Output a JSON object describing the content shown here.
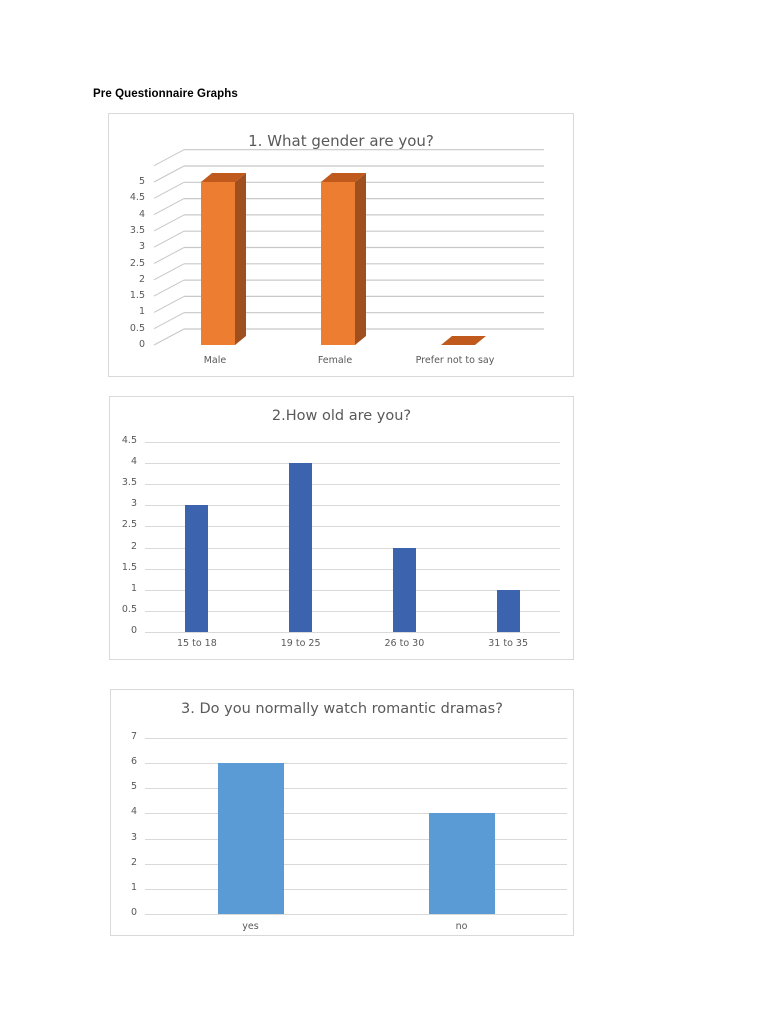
{
  "page": {
    "heading": "Pre Questionnaire Graphs"
  },
  "colors": {
    "orange_front": "#ED7D31",
    "orange_side": "#A0501E",
    "orange_top": "#C05A1C",
    "dark_blue": "#3C64AE",
    "light_blue": "#5B9BD5",
    "gridline": "#D9D9D9",
    "text": "#595959"
  },
  "chart_data": [
    {
      "type": "bar",
      "style": "3d-column",
      "title": "1. What gender are you?",
      "categories": [
        "Male",
        "Female",
        "Prefer not to say"
      ],
      "values": [
        5,
        5,
        0
      ],
      "xlabel": "",
      "ylabel": "",
      "ylim": [
        0,
        5
      ],
      "yticks": [
        "0",
        "0.5",
        "1",
        "1.5",
        "2",
        "2.5",
        "3",
        "3.5",
        "4",
        "4.5",
        "5"
      ],
      "grid": true,
      "legend": null,
      "color": "#ED7D31"
    },
    {
      "type": "bar",
      "title": "2.How old are you?",
      "categories": [
        "15 to 18",
        "19 to 25",
        "26 to 30",
        "31 to 35"
      ],
      "values": [
        3,
        4,
        2,
        1
      ],
      "xlabel": "",
      "ylabel": "",
      "ylim": [
        0,
        4.5
      ],
      "yticks": [
        "0",
        "0.5",
        "1",
        "1.5",
        "2",
        "2.5",
        "3",
        "3.5",
        "4",
        "4.5"
      ],
      "grid": true,
      "legend": null,
      "color": "#3C64AE"
    },
    {
      "type": "bar",
      "title": "3. Do you normally watch romantic dramas?",
      "categories": [
        "yes",
        "no"
      ],
      "values": [
        6,
        4
      ],
      "xlabel": "",
      "ylabel": "",
      "ylim": [
        0,
        7
      ],
      "yticks": [
        "0",
        "1",
        "2",
        "3",
        "4",
        "5",
        "6",
        "7"
      ],
      "grid": true,
      "legend": null,
      "color": "#5B9BD5"
    }
  ]
}
